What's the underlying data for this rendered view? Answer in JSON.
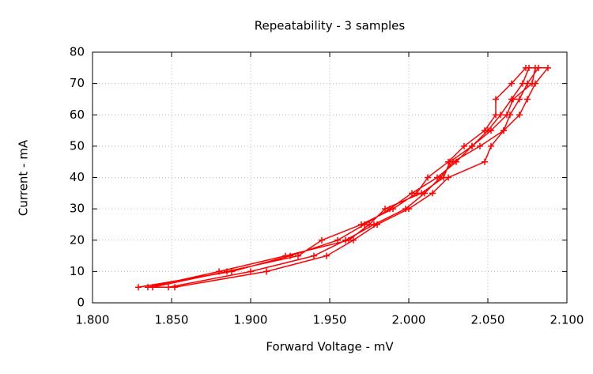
{
  "chart_data": {
    "type": "line",
    "title": "Repeatability - 3 samples",
    "x_label": "Forward Voltage - mV",
    "y_label": "Current - mA",
    "color": "#ff0000",
    "grid": true,
    "x": [
      1.829,
      1.888,
      1.925,
      1.955,
      1.972,
      1.988,
      2.002,
      2.018,
      2.03,
      2.04,
      2.05,
      2.058,
      2.065,
      2.072,
      2.076,
      2.088,
      2.08,
      2.075,
      2.07,
      2.06,
      2.052,
      2.048,
      2.025,
      2.015,
      2.0,
      1.98,
      1.965,
      1.948,
      1.91,
      1.852,
      1.838,
      1.885,
      1.93,
      1.945,
      1.97,
      1.99,
      2.005,
      2.012,
      2.025,
      2.035,
      2.048,
      2.055,
      2.055,
      2.065,
      2.074,
      2.082,
      2.075,
      2.07,
      2.064,
      2.06,
      2.045,
      2.028,
      2.02,
      2.01,
      1.998,
      1.978,
      1.96,
      1.94,
      1.9,
      1.848,
      1.835,
      1.88,
      1.922,
      1.962,
      1.975,
      1.985,
      2.008,
      2.022,
      2.026,
      2.04,
      2.052,
      2.062,
      2.066,
      2.078,
      2.08
    ],
    "values": [
      5,
      10,
      15,
      20,
      25,
      30,
      35,
      40,
      45,
      50,
      55,
      60,
      65,
      70,
      75,
      75,
      70,
      65,
      60,
      55,
      50,
      45,
      40,
      35,
      30,
      25,
      20,
      15,
      10,
      5,
      5,
      10,
      15,
      20,
      25,
      30,
      35,
      40,
      45,
      50,
      55,
      60,
      65,
      70,
      75,
      75,
      70,
      65,
      60,
      55,
      50,
      45,
      40,
      35,
      30,
      25,
      20,
      15,
      10,
      5,
      5,
      10,
      15,
      20,
      25,
      30,
      35,
      40,
      45,
      50,
      55,
      60,
      65,
      70,
      75
    ],
    "xlim": [
      1.8,
      2.1
    ],
    "xticks": [
      {
        "value": 1.8,
        "label": "1.800"
      },
      {
        "value": 1.85,
        "label": "1.850"
      },
      {
        "value": 1.9,
        "label": "1.900"
      },
      {
        "value": 1.95,
        "label": "1.950"
      },
      {
        "value": 2.0,
        "label": "2.000"
      },
      {
        "value": 2.05,
        "label": "2.050"
      },
      {
        "value": 2.1,
        "label": "2.100"
      }
    ],
    "ylim": [
      0,
      80
    ],
    "yticks": [
      0,
      10,
      20,
      30,
      40,
      50,
      60,
      70,
      80
    ]
  }
}
